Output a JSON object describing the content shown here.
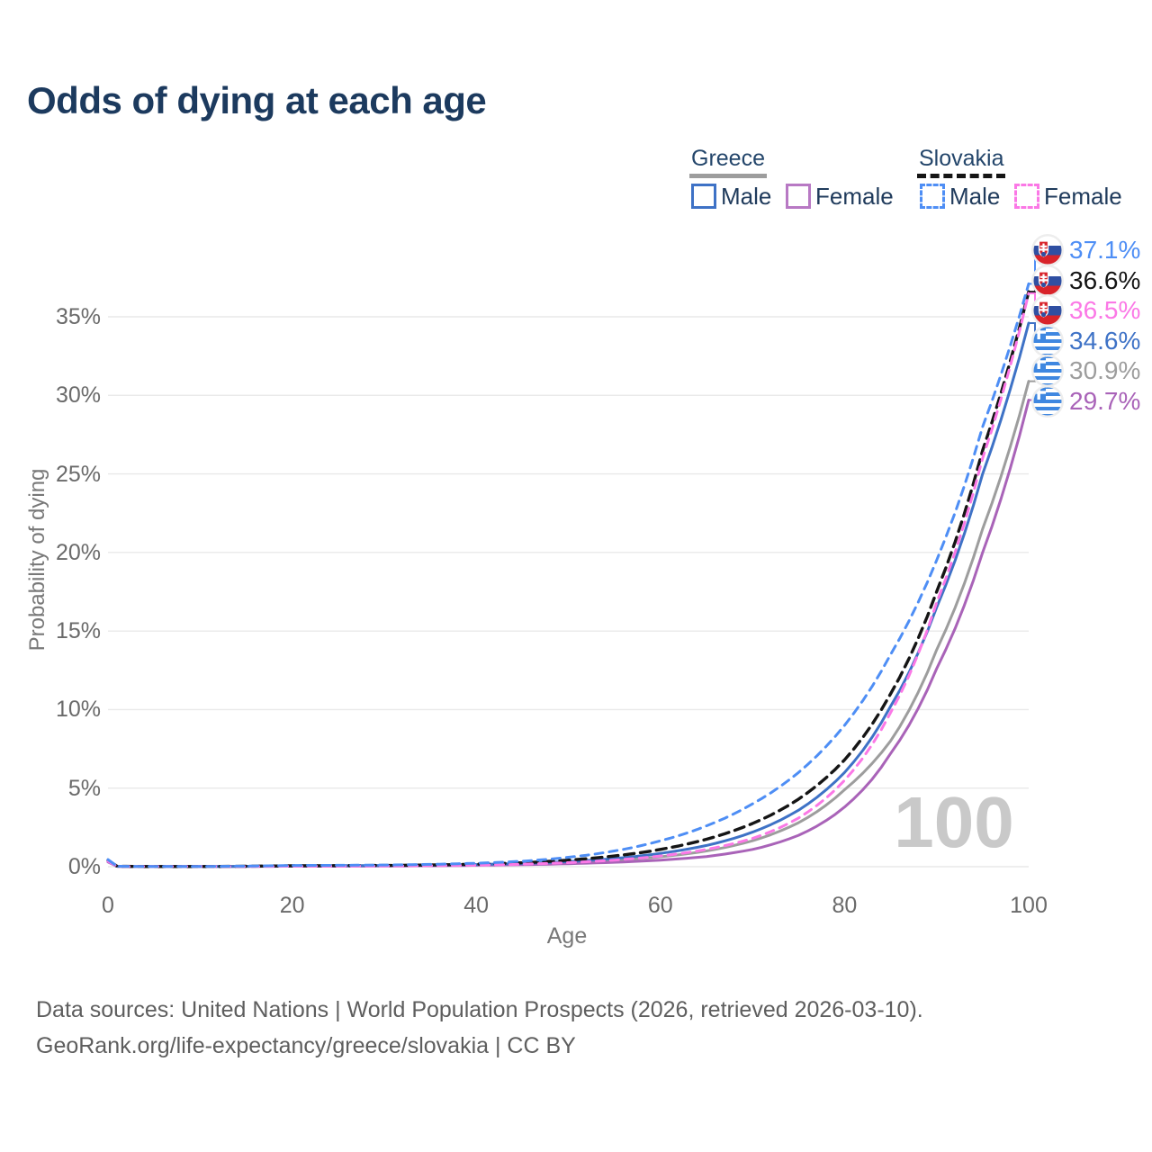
{
  "title": "Odds of dying at each age",
  "watermark": "100",
  "footer": {
    "line1": "Data sources: United Nations | World Population Prospects (2026, retrieved 2026-03-10).",
    "line2": "GeoRank.org/life-expectancy/greece/slovakia | CC BY"
  },
  "legend": {
    "groups": [
      {
        "country": "Greece",
        "underline_style": "solid",
        "underline_color": "#9d9d9d",
        "items": [
          {
            "label": "Male",
            "color": "#3e72c6",
            "dash": false
          },
          {
            "label": "Female",
            "color": "#b879c4",
            "dash": false
          }
        ]
      },
      {
        "country": "Slovakia",
        "underline_style": "dashed",
        "underline_color": "#151515",
        "items": [
          {
            "label": "Male",
            "color": "#4e8ef5",
            "dash": true
          },
          {
            "label": "Female",
            "color": "#fb78e6",
            "dash": true
          }
        ]
      }
    ]
  },
  "axes": {
    "x_title": "Age",
    "y_title": "Probability of dying",
    "x_ticks": [
      {
        "v": 0,
        "label": "0"
      },
      {
        "v": 20,
        "label": "20"
      },
      {
        "v": 40,
        "label": "40"
      },
      {
        "v": 60,
        "label": "60"
      },
      {
        "v": 80,
        "label": "80"
      },
      {
        "v": 100,
        "label": "100"
      }
    ],
    "y_ticks": [
      {
        "v": 0,
        "label": "0%"
      },
      {
        "v": 5,
        "label": "5%"
      },
      {
        "v": 10,
        "label": "10%"
      },
      {
        "v": 15,
        "label": "15%"
      },
      {
        "v": 20,
        "label": "20%"
      },
      {
        "v": 25,
        "label": "25%"
      },
      {
        "v": 30,
        "label": "30%"
      },
      {
        "v": 35,
        "label": "35%"
      }
    ]
  },
  "chart_data": {
    "type": "line",
    "title": "Odds of dying at each age",
    "xlabel": "Age",
    "ylabel": "Probability of dying",
    "xlim": [
      0,
      100
    ],
    "ylim_pct": [
      0,
      37.5
    ],
    "grid": "horizontal",
    "legend_position": "top-right",
    "ages": [
      0,
      1,
      5,
      10,
      15,
      20,
      25,
      30,
      35,
      40,
      45,
      50,
      55,
      60,
      65,
      70,
      75,
      80,
      85,
      90,
      95,
      100
    ],
    "series": [
      {
        "id": "greece-both",
        "country": "Greece",
        "sex": "Both",
        "flag": "gr",
        "color": "#9d9d9d",
        "dash": null,
        "width": 3,
        "end_label": "30.9%",
        "end_value": 30.9,
        "values": [
          0.33,
          0.025,
          0.01,
          0.01,
          0.025,
          0.045,
          0.05,
          0.06,
          0.08,
          0.11,
          0.17,
          0.26,
          0.4,
          0.63,
          1.0,
          1.65,
          2.8,
          4.9,
          8.0,
          13.8,
          21.5,
          30.9
        ]
      },
      {
        "id": "greece-female",
        "country": "Greece",
        "sex": "Female",
        "flag": "gr",
        "color": "#a963b8",
        "dash": null,
        "width": 3,
        "end_label": "29.7%",
        "end_value": 29.7,
        "values": [
          0.3,
          0.02,
          0.01,
          0.01,
          0.02,
          0.03,
          0.03,
          0.04,
          0.06,
          0.09,
          0.13,
          0.19,
          0.28,
          0.42,
          0.65,
          1.1,
          2.0,
          3.8,
          7.2,
          12.6,
          20.0,
          29.7
        ]
      },
      {
        "id": "greece-male",
        "country": "Greece",
        "sex": "Male",
        "flag": "gr",
        "color": "#3e72c6",
        "dash": null,
        "width": 3,
        "end_label": "34.6%",
        "end_value": 34.6,
        "values": [
          0.35,
          0.03,
          0.01,
          0.01,
          0.03,
          0.06,
          0.07,
          0.08,
          0.1,
          0.14,
          0.21,
          0.33,
          0.52,
          0.85,
          1.35,
          2.2,
          3.6,
          6.0,
          10.2,
          16.5,
          25.0,
          34.6
        ]
      },
      {
        "id": "slovakia-both",
        "country": "Slovakia",
        "sex": "Both",
        "flag": "sk",
        "color": "#151515",
        "dash": "11 7",
        "width": 3.4,
        "end_label": "36.6%",
        "end_value": 36.6,
        "values": [
          0.4,
          0.03,
          0.01,
          0.012,
          0.03,
          0.06,
          0.07,
          0.08,
          0.11,
          0.16,
          0.25,
          0.42,
          0.68,
          1.1,
          1.75,
          2.75,
          4.3,
          6.8,
          11.0,
          17.5,
          26.5,
          36.6
        ]
      },
      {
        "id": "slovakia-female",
        "country": "Slovakia",
        "sex": "Female",
        "flag": "sk",
        "color": "#fb78e6",
        "dash": "9 7",
        "width": 3,
        "end_label": "36.5%",
        "end_value": 36.5,
        "values": [
          0.35,
          0.025,
          0.01,
          0.01,
          0.02,
          0.03,
          0.035,
          0.045,
          0.07,
          0.1,
          0.16,
          0.26,
          0.42,
          0.68,
          1.1,
          1.8,
          3.1,
          5.5,
          9.8,
          16.8,
          26.0,
          36.5
        ]
      },
      {
        "id": "slovakia-male",
        "country": "Slovakia",
        "sex": "Male",
        "flag": "sk",
        "color": "#4e8ef5",
        "dash": "9 7",
        "width": 3,
        "end_label": "37.1%",
        "end_value": 37.1,
        "values": [
          0.45,
          0.03,
          0.01,
          0.015,
          0.04,
          0.08,
          0.09,
          0.11,
          0.15,
          0.22,
          0.35,
          0.6,
          1.0,
          1.65,
          2.6,
          4.0,
          6.0,
          9.0,
          13.5,
          19.5,
          28.0,
          37.1
        ]
      }
    ]
  }
}
